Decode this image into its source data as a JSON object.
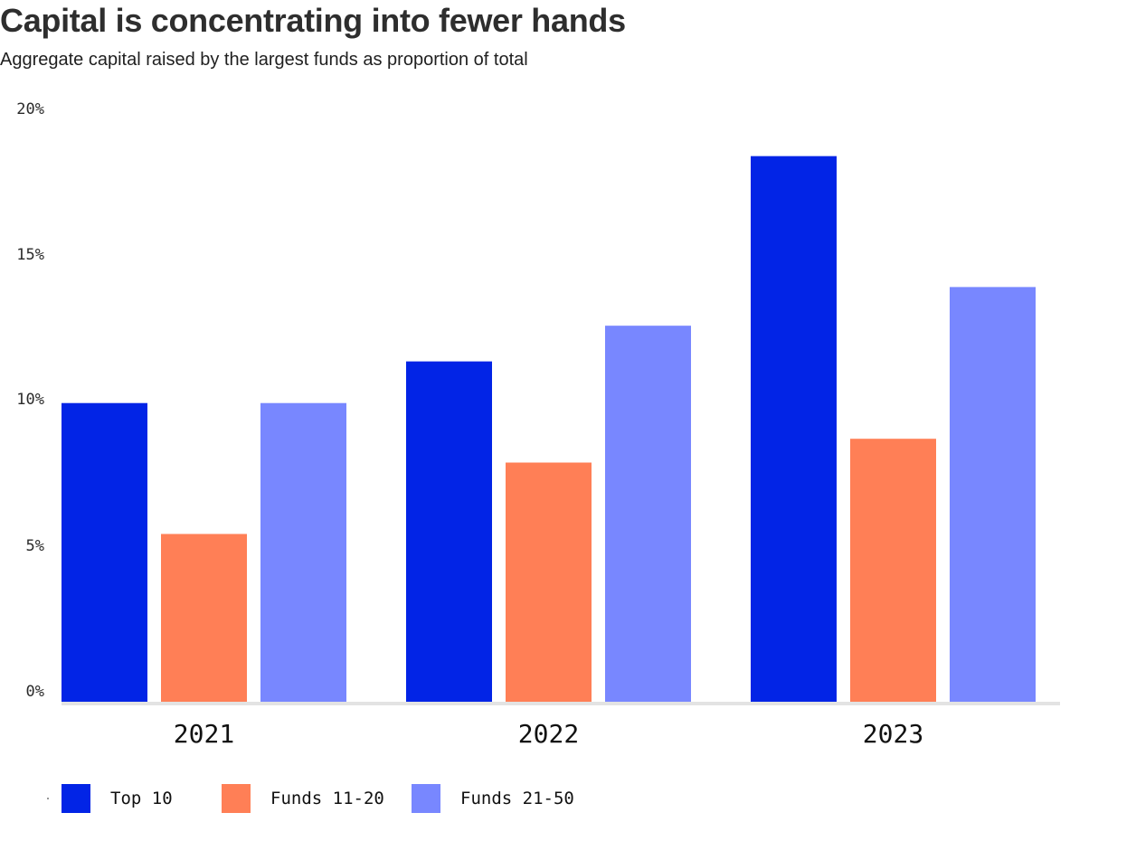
{
  "chart_data": {
    "type": "bar",
    "title": "Capital is concentrating into fewer hands",
    "subtitle": "Aggregate capital raised by the largest funds as proportion of total",
    "categories": [
      "2021",
      "2022",
      "2023"
    ],
    "series": [
      {
        "name": "Top 10",
        "color": "#0224e6",
        "values": [
          10.1,
          11.5,
          18.4
        ]
      },
      {
        "name": "Funds 11-20",
        "color": "#ff7f56",
        "values": [
          5.7,
          8.1,
          8.9
        ]
      },
      {
        "name": "Funds 21-50",
        "color": "#7887ff",
        "values": [
          10.1,
          12.7,
          14.0
        ]
      }
    ],
    "ylim": [
      0,
      20
    ],
    "yticks": [
      0,
      5,
      10,
      15,
      20
    ],
    "ytick_labels": [
      "0%",
      "5%",
      "10%",
      "15%",
      "20%"
    ],
    "xlabel": "",
    "ylabel": "",
    "grid": false,
    "legend": "bottom-left"
  }
}
